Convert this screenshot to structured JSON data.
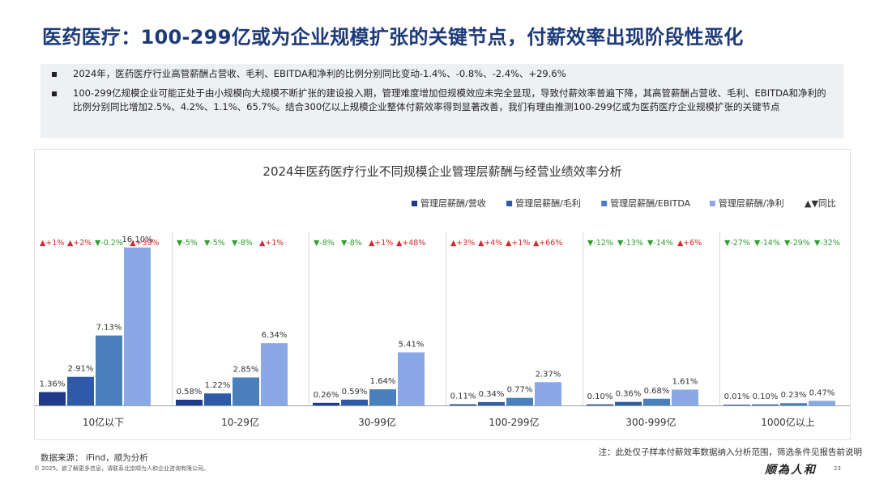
{
  "page": {
    "title": "医药医疗：100-299亿或为企业规模扩张的关键节点，付薪效率出现阶段性恶化",
    "bullets": [
      "2024年，医药医疗行业高管薪酬占营收、毛利、EBITDA和净利的比例分别同比变动-1.4%、-0.8%、-2.4%、+29.6%",
      "100-299亿规模企业可能正处于由小规模向大规模不断扩张的建设投入期，管理难度增加但规模效应未完全显现，导致付薪效率普遍下降，其高管薪酬占营收、毛利、EBITDA和净利的比例分别同比增加2.5%、4.2%、1.1%、65.7%。结合300亿以上规模企业整体付薪效率得到显著改善，我们有理由推测100-299亿或为医药医疗企业规模扩张的关键节点"
    ],
    "source": "数据来源： iFind，顺为分析",
    "copyright": "© 2025。欲了解更多信息，请联系北京顺为人和企业咨询有限公司。",
    "note": "注：此处仅子样本付薪效率数据纳入分析范围，筛选条件见报告前说明",
    "brand": "顺為人和",
    "page_number": "23"
  },
  "chart_data": {
    "type": "bar",
    "title": "2024年医药医疗行业不同规模企业管理层薪酬与经营业绩效率分析",
    "categories": [
      "10亿以下",
      "10-29亿",
      "30-99亿",
      "100-299亿",
      "300-999亿",
      "1000亿以上"
    ],
    "series": [
      {
        "name": "管理层薪酬/营收",
        "color": "#1f3a8a",
        "values": [
          1.36,
          0.58,
          0.26,
          0.11,
          0.1,
          0.01
        ],
        "labels": [
          "1.36%",
          "0.58%",
          "0.26%",
          "0.11%",
          "0.10%",
          "0.01%"
        ]
      },
      {
        "name": "管理层薪酬/毛利",
        "color": "#2e5aa8",
        "values": [
          2.91,
          1.22,
          0.59,
          0.34,
          0.36,
          0.1
        ],
        "labels": [
          "2.91%",
          "1.22%",
          "0.59%",
          "0.34%",
          "0.36%",
          "0.10%"
        ]
      },
      {
        "name": "管理层薪酬/EBITDA",
        "color": "#4a7fbd",
        "values": [
          7.13,
          2.85,
          1.64,
          0.77,
          0.68,
          0.23
        ],
        "labels": [
          "7.13%",
          "2.85%",
          "1.64%",
          "0.77%",
          "0.68%",
          "0.23%"
        ]
      },
      {
        "name": "管理层薪酬/净利",
        "color": "#8aa7e6",
        "values": [
          16.1,
          6.34,
          5.41,
          2.37,
          1.61,
          0.47
        ],
        "labels": [
          "16.10%",
          "6.34%",
          "5.41%",
          "2.37%",
          "1.61%",
          "0.47%"
        ]
      }
    ],
    "yoy_legend": "▲▼同比",
    "yoy": [
      [
        "+1%",
        "+2%",
        "-0.2%",
        "+39%"
      ],
      [
        "-5%",
        "-5%",
        "-8%",
        "+1%"
      ],
      [
        "-8%",
        "-8%",
        "+1%",
        "+48%"
      ],
      [
        "+3%",
        "+4%",
        "+1%",
        "+66%"
      ],
      [
        "-12%",
        "-13%",
        "-14%",
        "+6%"
      ],
      [
        "-27%",
        "-14%",
        "-29%",
        "-32%"
      ]
    ],
    "ylim": [
      0,
      16.5
    ],
    "grid": false,
    "legend_position": "top-right",
    "colors": {
      "up": "#d62728",
      "down": "#2ca02c"
    }
  }
}
